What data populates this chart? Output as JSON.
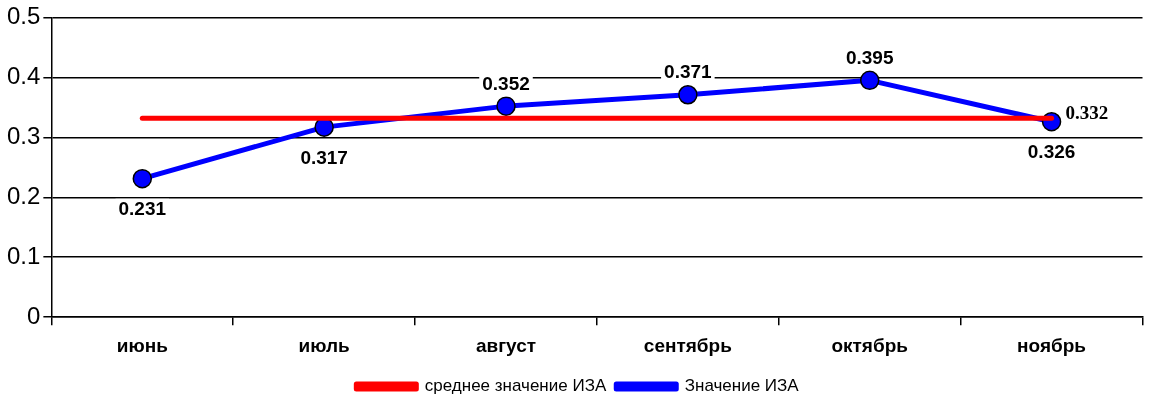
{
  "chart_data": {
    "type": "line",
    "categories": [
      "июнь",
      "июль",
      "август",
      "сентябрь",
      "октябрь",
      "ноябрь"
    ],
    "series": [
      {
        "name": "Значение ИЗА",
        "color": "#0000ff",
        "values": [
          0.231,
          0.317,
          0.352,
          0.371,
          0.395,
          0.326
        ],
        "value_labels": [
          "0.231",
          "0.317",
          "0.352",
          "0.371",
          "0.395",
          "0.326"
        ],
        "marker": "circle"
      },
      {
        "name": "среднее значение ИЗА",
        "color": "#ff0000",
        "values": [
          0.332,
          0.332,
          0.332,
          0.332,
          0.332,
          0.332
        ],
        "value_labels": [
          null,
          null,
          null,
          null,
          null,
          "0.332"
        ],
        "marker": "none"
      }
    ],
    "ylim": [
      0,
      0.5
    ],
    "yticks": [
      0,
      0.1,
      0.2,
      0.3,
      0.4,
      0.5
    ],
    "grid": "y",
    "legend": "bottom",
    "line_style": "solid"
  }
}
